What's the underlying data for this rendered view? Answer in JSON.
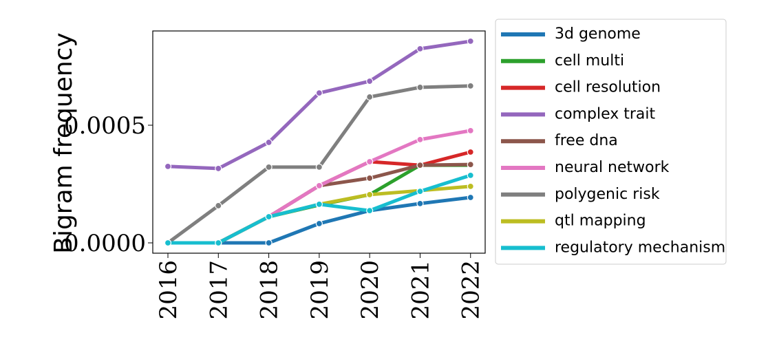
{
  "chart_data": {
    "type": "line",
    "y_label": "Bigram frequency",
    "x": [
      2016,
      2017,
      2018,
      2019,
      2020,
      2021,
      2022
    ],
    "xlim": [
      2015.7,
      2022.29
    ],
    "xticks": [
      2016,
      2017,
      2018,
      2019,
      2020,
      2021,
      2022
    ],
    "ylim": [
      -4.39e-05,
      0.0009006
    ],
    "yticks": [
      {
        "value": 0,
        "label": "0.0000"
      },
      {
        "value": 0.0005,
        "label": "0.0005"
      }
    ],
    "legend": "outside-right",
    "series": [
      {
        "name": "3d genome",
        "color": "#1f77b4",
        "values": [
          0,
          0,
          0,
          8.19e-05,
          0.000137,
          0.000167,
          0.000193
        ]
      },
      {
        "name": "cell multi",
        "color": "#2ca02c",
        "values": [
          0,
          0,
          0.000111,
          0.000161,
          0.000205,
          0.00033,
          0.00033
        ]
      },
      {
        "name": "cell resolution",
        "color": "#d62728",
        "values": [
          0,
          0,
          0.000111,
          0.000243,
          0.000345,
          0.00033,
          0.000386
        ]
      },
      {
        "name": "complex trait",
        "color": "#9467bd",
        "values": [
          0.000325,
          0.000316,
          0.000427,
          0.000637,
          0.000687,
          0.000825,
          0.000857
        ]
      },
      {
        "name": "free dna",
        "color": "#8c564b",
        "values": [
          0,
          0,
          0.000111,
          0.000243,
          0.000275,
          0.00033,
          0.000333
        ]
      },
      {
        "name": "neural network",
        "color": "#e377c2",
        "values": [
          0,
          0,
          0.000111,
          0.000243,
          0.000345,
          0.000439,
          0.000477
        ]
      },
      {
        "name": "polygenic risk",
        "color": "#7f7f7f",
        "values": [
          0,
          0.000158,
          0.000322,
          0.000322,
          0.00062,
          0.000661,
          0.000667
        ]
      },
      {
        "name": "qtl mapping",
        "color": "#bcbd22",
        "values": [
          0,
          0,
          0.000111,
          0.000164,
          0.000205,
          0.000222,
          0.00024
        ]
      },
      {
        "name": "regulatory mechanism",
        "color": "#17becf",
        "values": [
          0,
          0,
          0.000111,
          0.000164,
          0.000137,
          0.000219,
          0.000287
        ]
      }
    ]
  }
}
